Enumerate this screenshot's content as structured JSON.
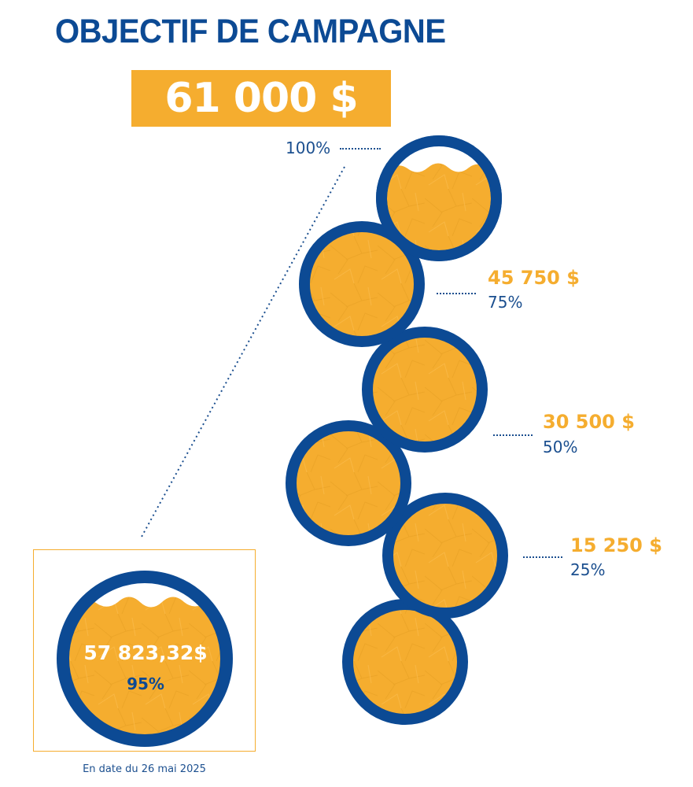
{
  "title": "OBJECTIF DE CAMPAGNE",
  "goal": "61 000 $",
  "progress_fraction": 0.95,
  "colors": {
    "blue": "#0c4a94",
    "gold": "#f5ad2f"
  },
  "milestones": [
    {
      "percent": "100%"
    },
    {
      "amount": "45 750 $",
      "percent": "75%"
    },
    {
      "amount": "30 500 $",
      "percent": "50%"
    },
    {
      "amount": "15 250 $",
      "percent": "25%"
    }
  ],
  "current": {
    "amount": "57 823,32$",
    "percent": "95%"
  },
  "date_note": "En date du 26 mai 2025"
}
